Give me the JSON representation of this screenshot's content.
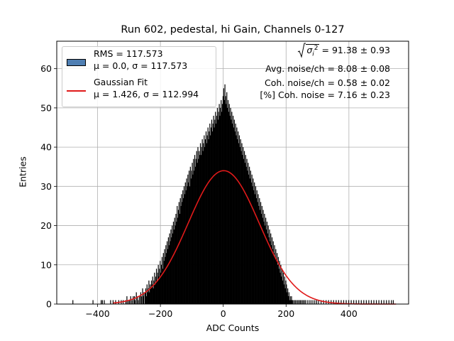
{
  "chart_data": {
    "type": "bar",
    "title": "Run 602, pedestal, hi Gain, Channels 0-127",
    "xlabel": "ADC Counts",
    "ylabel": "Entries",
    "xlim": [
      -530,
      590
    ],
    "ylim": [
      0,
      67
    ],
    "x_ticks": [
      -400,
      -200,
      0,
      200,
      400
    ],
    "y_ticks": [
      0,
      10,
      20,
      30,
      40,
      50,
      60
    ],
    "grid": true,
    "legend_position": "top-left",
    "histogram": {
      "name": "RMS = 117.573",
      "label2": "μ = 0.0, σ = 117.573",
      "color": "#000000",
      "legend_color": "#4f7fb3",
      "bin_start": -480,
      "bin_width": 2,
      "bins": [
        [
          -480,
          1
        ],
        [
          -416,
          1
        ],
        [
          -390,
          1
        ],
        [
          -386,
          1
        ],
        [
          -380,
          1
        ],
        [
          -360,
          1
        ],
        [
          -352,
          1
        ],
        [
          -344,
          1
        ],
        [
          -334,
          1
        ],
        [
          -326,
          1
        ],
        [
          -320,
          1
        ],
        [
          -312,
          1
        ],
        [
          -308,
          2
        ],
        [
          -304,
          1
        ],
        [
          -300,
          1
        ],
        [
          -296,
          2
        ],
        [
          -292,
          1
        ],
        [
          -288,
          2
        ],
        [
          -284,
          2
        ],
        [
          -282,
          1
        ],
        [
          -278,
          3
        ],
        [
          -274,
          2
        ],
        [
          -272,
          1
        ],
        [
          -268,
          2
        ],
        [
          -264,
          3
        ],
        [
          -262,
          2
        ],
        [
          -258,
          4
        ],
        [
          -256,
          2
        ],
        [
          -254,
          3
        ],
        [
          -250,
          3
        ],
        [
          -248,
          4
        ],
        [
          -246,
          2
        ],
        [
          -244,
          5
        ],
        [
          -242,
          3
        ],
        [
          -240,
          4
        ],
        [
          -238,
          6
        ],
        [
          -236,
          3
        ],
        [
          -234,
          5
        ],
        [
          -232,
          4
        ],
        [
          -230,
          6
        ],
        [
          -228,
          5
        ],
        [
          -226,
          7
        ],
        [
          -224,
          4
        ],
        [
          -222,
          6
        ],
        [
          -220,
          8
        ],
        [
          -218,
          5
        ],
        [
          -216,
          7
        ],
        [
          -214,
          9
        ],
        [
          -212,
          6
        ],
        [
          -210,
          8
        ],
        [
          -208,
          10
        ],
        [
          -206,
          7
        ],
        [
          -204,
          9
        ],
        [
          -202,
          11
        ],
        [
          -200,
          8
        ],
        [
          -198,
          10
        ],
        [
          -196,
          12
        ],
        [
          -194,
          9
        ],
        [
          -192,
          13
        ],
        [
          -190,
          11
        ],
        [
          -188,
          14
        ],
        [
          -186,
          12
        ],
        [
          -184,
          15
        ],
        [
          -182,
          13
        ],
        [
          -180,
          16
        ],
        [
          -178,
          14
        ],
        [
          -176,
          17
        ],
        [
          -174,
          15
        ],
        [
          -172,
          18
        ],
        [
          -170,
          16
        ],
        [
          -168,
          19
        ],
        [
          -166,
          17
        ],
        [
          -164,
          20
        ],
        [
          -162,
          18
        ],
        [
          -160,
          21
        ],
        [
          -158,
          19
        ],
        [
          -156,
          22
        ],
        [
          -154,
          20
        ],
        [
          -152,
          23
        ],
        [
          -150,
          21
        ],
        [
          -148,
          25
        ],
        [
          -146,
          22
        ],
        [
          -144,
          24
        ],
        [
          -142,
          26
        ],
        [
          -140,
          23
        ],
        [
          -138,
          27
        ],
        [
          -136,
          25
        ],
        [
          -134,
          28
        ],
        [
          -132,
          26
        ],
        [
          -130,
          29
        ],
        [
          -128,
          27
        ],
        [
          -126,
          30
        ],
        [
          -124,
          28
        ],
        [
          -122,
          31
        ],
        [
          -120,
          29
        ],
        [
          -118,
          32
        ],
        [
          -116,
          30
        ],
        [
          -114,
          33
        ],
        [
          -112,
          31
        ],
        [
          -110,
          34
        ],
        [
          -108,
          30
        ],
        [
          -106,
          35
        ],
        [
          -104,
          32
        ],
        [
          -102,
          34
        ],
        [
          -100,
          36
        ],
        [
          -98,
          33
        ],
        [
          -96,
          37
        ],
        [
          -94,
          34
        ],
        [
          -92,
          38
        ],
        [
          -90,
          35
        ],
        [
          -88,
          37
        ],
        [
          -86,
          39
        ],
        [
          -84,
          36
        ],
        [
          -82,
          40
        ],
        [
          -80,
          37
        ],
        [
          -78,
          39
        ],
        [
          -76,
          38
        ],
        [
          -74,
          41
        ],
        [
          -72,
          38
        ],
        [
          -70,
          40
        ],
        [
          -68,
          42
        ],
        [
          -66,
          39
        ],
        [
          -64,
          41
        ],
        [
          -62,
          43
        ],
        [
          -60,
          40
        ],
        [
          -58,
          42
        ],
        [
          -56,
          44
        ],
        [
          -54,
          41
        ],
        [
          -52,
          43
        ],
        [
          -50,
          45
        ],
        [
          -48,
          42
        ],
        [
          -46,
          44
        ],
        [
          -44,
          46
        ],
        [
          -42,
          43
        ],
        [
          -40,
          45
        ],
        [
          -38,
          47
        ],
        [
          -36,
          44
        ],
        [
          -34,
          46
        ],
        [
          -32,
          48
        ],
        [
          -30,
          45
        ],
        [
          -28,
          47
        ],
        [
          -26,
          49
        ],
        [
          -24,
          46
        ],
        [
          -22,
          48
        ],
        [
          -20,
          50
        ],
        [
          -18,
          47
        ],
        [
          -16,
          49
        ],
        [
          -14,
          51
        ],
        [
          -12,
          48
        ],
        [
          -10,
          50
        ],
        [
          -8,
          52
        ],
        [
          -6,
          49
        ],
        [
          -4,
          51
        ],
        [
          -2,
          53
        ],
        [
          0,
          55
        ],
        [
          2,
          52
        ],
        [
          4,
          56
        ],
        [
          6,
          53
        ],
        [
          8,
          51
        ],
        [
          10,
          54
        ],
        [
          12,
          50
        ],
        [
          14,
          52
        ],
        [
          16,
          49
        ],
        [
          18,
          51
        ],
        [
          20,
          48
        ],
        [
          22,
          50
        ],
        [
          24,
          47
        ],
        [
          26,
          49
        ],
        [
          28,
          46
        ],
        [
          30,
          48
        ],
        [
          32,
          45
        ],
        [
          34,
          47
        ],
        [
          36,
          44
        ],
        [
          38,
          46
        ],
        [
          40,
          43
        ],
        [
          42,
          45
        ],
        [
          44,
          42
        ],
        [
          46,
          44
        ],
        [
          48,
          41
        ],
        [
          50,
          43
        ],
        [
          52,
          40
        ],
        [
          54,
          42
        ],
        [
          56,
          39
        ],
        [
          58,
          41
        ],
        [
          60,
          38
        ],
        [
          62,
          40
        ],
        [
          64,
          37
        ],
        [
          66,
          39
        ],
        [
          68,
          36
        ],
        [
          70,
          38
        ],
        [
          72,
          35
        ],
        [
          74,
          37
        ],
        [
          76,
          34
        ],
        [
          78,
          36
        ],
        [
          80,
          33
        ],
        [
          82,
          35
        ],
        [
          84,
          32
        ],
        [
          86,
          34
        ],
        [
          88,
          31
        ],
        [
          90,
          33
        ],
        [
          92,
          30
        ],
        [
          94,
          32
        ],
        [
          96,
          29
        ],
        [
          98,
          31
        ],
        [
          100,
          28
        ],
        [
          102,
          30
        ],
        [
          104,
          27
        ],
        [
          106,
          29
        ],
        [
          108,
          26
        ],
        [
          110,
          28
        ],
        [
          112,
          25
        ],
        [
          114,
          27
        ],
        [
          116,
          24
        ],
        [
          118,
          26
        ],
        [
          120,
          23
        ],
        [
          122,
          25
        ],
        [
          124,
          22
        ],
        [
          126,
          24
        ],
        [
          128,
          21
        ],
        [
          130,
          23
        ],
        [
          132,
          20
        ],
        [
          134,
          22
        ],
        [
          136,
          19
        ],
        [
          138,
          21
        ],
        [
          140,
          18
        ],
        [
          142,
          20
        ],
        [
          144,
          17
        ],
        [
          146,
          19
        ],
        [
          148,
          16
        ],
        [
          150,
          18
        ],
        [
          152,
          15
        ],
        [
          154,
          17
        ],
        [
          156,
          14
        ],
        [
          158,
          16
        ],
        [
          160,
          13
        ],
        [
          162,
          15
        ],
        [
          164,
          12
        ],
        [
          166,
          14
        ],
        [
          168,
          11
        ],
        [
          170,
          13
        ],
        [
          172,
          10
        ],
        [
          174,
          12
        ],
        [
          176,
          9
        ],
        [
          178,
          11
        ],
        [
          180,
          8
        ],
        [
          182,
          10
        ],
        [
          184,
          7
        ],
        [
          186,
          9
        ],
        [
          188,
          6
        ],
        [
          190,
          8
        ],
        [
          192,
          5
        ],
        [
          194,
          7
        ],
        [
          196,
          4
        ],
        [
          198,
          6
        ],
        [
          200,
          5
        ],
        [
          202,
          3
        ],
        [
          204,
          4
        ],
        [
          206,
          2
        ],
        [
          208,
          3
        ],
        [
          210,
          1
        ],
        [
          212,
          2
        ],
        [
          214,
          1
        ],
        [
          216,
          2
        ],
        [
          218,
          1
        ],
        [
          220,
          1
        ],
        [
          224,
          1
        ],
        [
          228,
          1
        ],
        [
          232,
          1
        ],
        [
          236,
          1
        ],
        [
          240,
          1
        ],
        [
          244,
          1
        ],
        [
          248,
          1
        ],
        [
          252,
          1
        ],
        [
          256,
          1
        ],
        [
          260,
          1
        ],
        [
          266,
          1
        ],
        [
          272,
          1
        ],
        [
          278,
          1
        ],
        [
          284,
          1
        ],
        [
          290,
          1
        ],
        [
          296,
          1
        ],
        [
          302,
          1
        ],
        [
          310,
          1
        ],
        [
          318,
          1
        ],
        [
          326,
          1
        ],
        [
          334,
          1
        ],
        [
          342,
          1
        ],
        [
          350,
          1
        ],
        [
          358,
          1
        ],
        [
          366,
          1
        ],
        [
          374,
          1
        ],
        [
          382,
          1
        ],
        [
          390,
          1
        ],
        [
          398,
          1
        ],
        [
          406,
          1
        ],
        [
          414,
          1
        ],
        [
          422,
          1
        ],
        [
          430,
          1
        ],
        [
          438,
          1
        ],
        [
          446,
          1
        ],
        [
          454,
          1
        ],
        [
          462,
          1
        ],
        [
          470,
          1
        ],
        [
          478,
          1
        ],
        [
          486,
          1
        ],
        [
          494,
          1
        ],
        [
          502,
          1
        ],
        [
          510,
          1
        ],
        [
          518,
          1
        ],
        [
          526,
          1
        ],
        [
          534,
          1
        ],
        [
          540,
          1
        ]
      ]
    },
    "fit": {
      "name": "Gaussian Fit",
      "label2": "μ = 1.426, σ = 112.994",
      "mu": 1.426,
      "sigma": 112.994,
      "amplitude": 34,
      "color": "#e01a1a"
    },
    "annotations": {
      "sqrt_symbol": "σ",
      "sqrt_sub": "i",
      "sqrt_sup": "2",
      "line1_value": "= 91.38 ± 0.93",
      "line2": "Avg. noise/ch = 8.08 ± 0.08",
      "line3": "Coh. noise/ch = 0.58 ± 0.02",
      "line4": "[%] Coh. noise = 7.16 ± 0.23"
    }
  }
}
